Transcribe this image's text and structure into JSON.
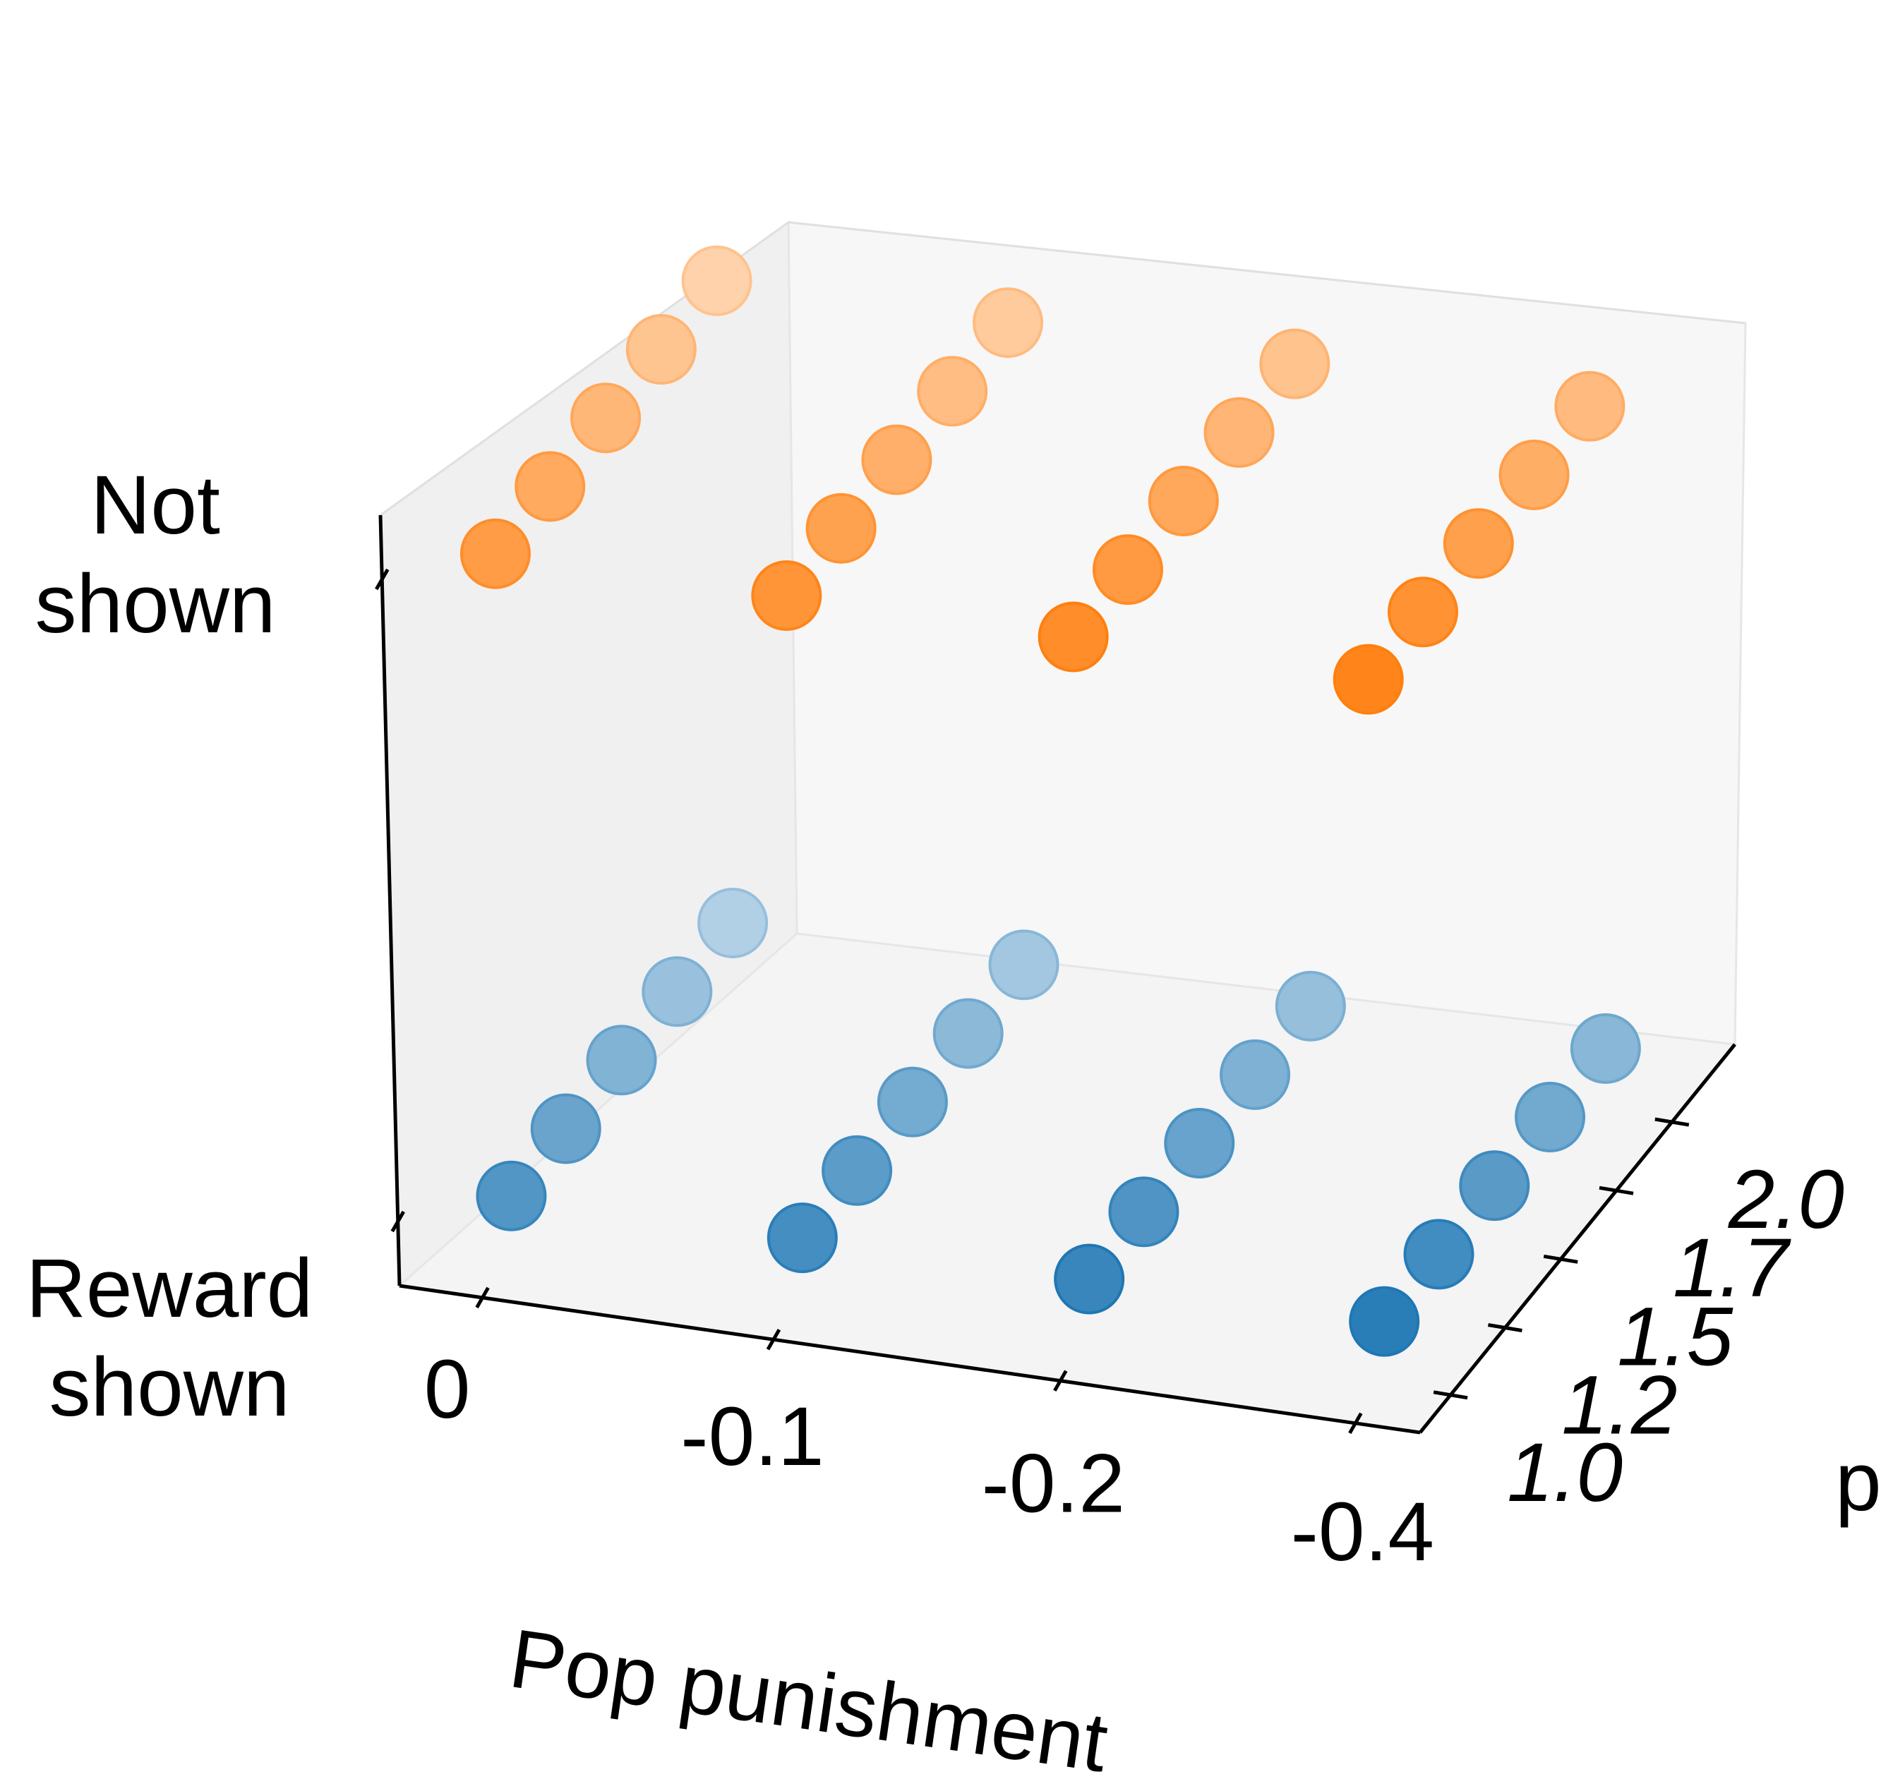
{
  "chart_data": {
    "type": "scatter3d",
    "axes": {
      "x": {
        "label": "Pop punishment",
        "ticks": [
          "0",
          "-0.1",
          "-0.2",
          "-0.4"
        ]
      },
      "y": {
        "label": "p",
        "ticks": [
          "1.0",
          "1.2",
          "1.5",
          "1.7",
          "2.0"
        ]
      },
      "z": {
        "label": "",
        "ticks": [
          "Reward shown",
          "Not shown"
        ]
      }
    },
    "grid": false,
    "colors": {
      "reward_shown": "#1f77b4",
      "not_shown": "#ff7f0e"
    },
    "series": [
      {
        "name": "Reward shown",
        "z": "Reward shown",
        "x": [
          "0",
          "0",
          "0",
          "0",
          "0",
          "-0.1",
          "-0.1",
          "-0.1",
          "-0.1",
          "-0.1",
          "-0.2",
          "-0.2",
          "-0.2",
          "-0.2",
          "-0.2",
          "-0.4",
          "-0.4",
          "-0.4",
          "-0.4",
          "-0.4"
        ],
        "y": [
          "1.0",
          "1.2",
          "1.5",
          "1.7",
          "2.0",
          "1.0",
          "1.2",
          "1.5",
          "1.7",
          "2.0",
          "1.0",
          "1.2",
          "1.5",
          "1.7",
          "2.0",
          "1.0",
          "1.2",
          "1.5",
          "1.7",
          "2.0"
        ]
      },
      {
        "name": "Not shown",
        "z": "Not shown",
        "x": [
          "0",
          "0",
          "0",
          "0",
          "0",
          "-0.1",
          "-0.1",
          "-0.1",
          "-0.1",
          "-0.1",
          "-0.2",
          "-0.2",
          "-0.2",
          "-0.2",
          "-0.2",
          "-0.4",
          "-0.4",
          "-0.4",
          "-0.4",
          "-0.4"
        ],
        "y": [
          "1.0",
          "1.2",
          "1.5",
          "1.7",
          "2.0",
          "1.0",
          "1.2",
          "1.5",
          "1.7",
          "2.0",
          "1.0",
          "1.2",
          "1.5",
          "1.7",
          "2.0",
          "1.0",
          "1.2",
          "1.5",
          "1.7",
          "2.0"
        ]
      }
    ]
  }
}
